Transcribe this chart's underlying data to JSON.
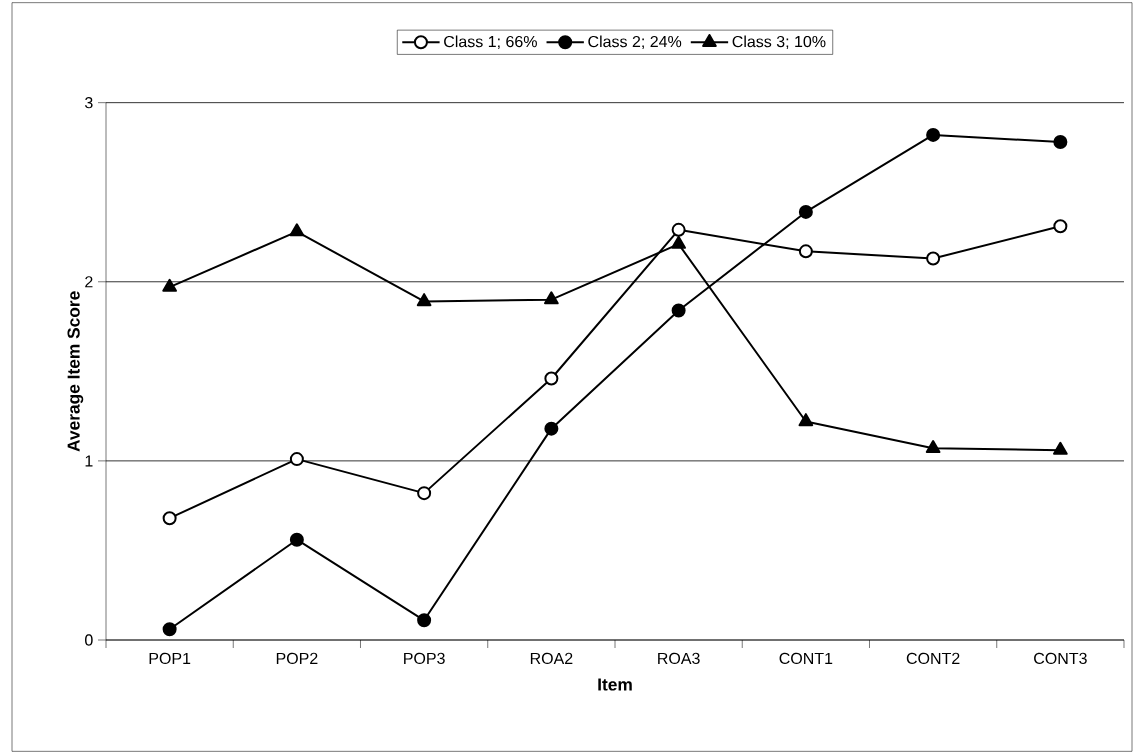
{
  "chart_data": {
    "type": "line",
    "xlabel": "Item",
    "ylabel": "Average Item Score",
    "categories": [
      "POP1",
      "POP2",
      "POP3",
      "ROA2",
      "ROA3",
      "CONT1",
      "CONT2",
      "CONT3"
    ],
    "series": [
      {
        "name": "Class 1; 66%",
        "color": "#000000",
        "marker": "circle-open",
        "values": [
          0.68,
          1.01,
          0.82,
          1.46,
          2.29,
          2.17,
          2.13,
          2.31
        ]
      },
      {
        "name": "Class 2; 24%",
        "color": "#000000",
        "marker": "circle",
        "values": [
          0.06,
          0.56,
          0.11,
          1.18,
          1.84,
          2.39,
          2.82,
          2.78
        ]
      },
      {
        "name": "Class 3; 10%",
        "color": "#000000",
        "marker": "triangle",
        "values": [
          1.97,
          2.28,
          1.89,
          1.9,
          2.21,
          1.22,
          1.07,
          1.06
        ]
      }
    ],
    "ylim": [
      0,
      3
    ],
    "yticks": [
      0,
      1,
      2,
      3
    ],
    "grid": "y",
    "legend": "top",
    "line_style": "solid"
  }
}
